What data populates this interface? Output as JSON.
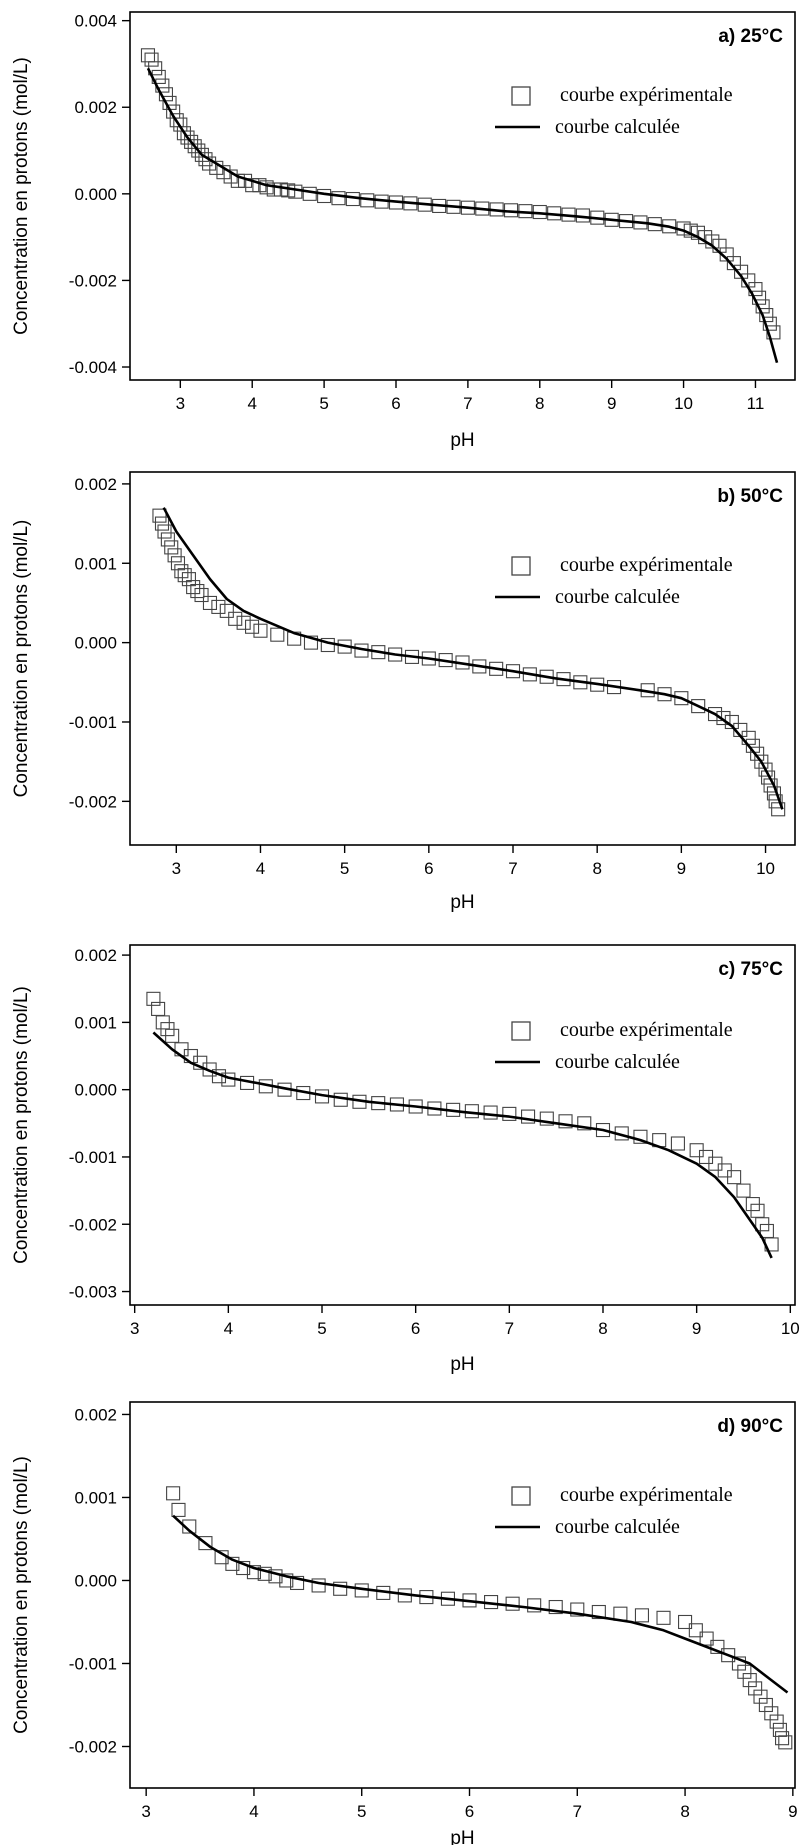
{
  "chart_data": [
    {
      "type": "scatter",
      "title": "a) 25°C",
      "xlabel": "pH",
      "ylabel": "Concentration en protons (mol/L)",
      "xlim": [
        2.3,
        11.55
      ],
      "ylim": [
        -0.0043,
        0.0042
      ],
      "xticks": [
        3,
        4,
        5,
        6,
        7,
        8,
        9,
        10,
        11
      ],
      "yticks": [
        0.004,
        0.002,
        0.0,
        -0.002,
        -0.004
      ],
      "ytick_labels": [
        "0.004",
        "0.002",
        "0.000",
        "-0.002",
        "-0.004"
      ],
      "legend": {
        "experimental": "courbe expérimentale",
        "calculated": "courbe calculée",
        "placement": "top-right"
      },
      "series": [
        {
          "name": "courbe expérimentale",
          "kind": "markers",
          "x": [
            2.55,
            2.6,
            2.65,
            2.7,
            2.75,
            2.8,
            2.85,
            2.9,
            2.95,
            3.0,
            3.05,
            3.1,
            3.15,
            3.2,
            3.25,
            3.3,
            3.35,
            3.4,
            3.5,
            3.6,
            3.7,
            3.8,
            3.9,
            4.0,
            4.1,
            4.2,
            4.3,
            4.4,
            4.5,
            4.6,
            4.8,
            5.0,
            5.2,
            5.4,
            5.6,
            5.8,
            6.0,
            6.2,
            6.4,
            6.6,
            6.8,
            7.0,
            7.2,
            7.4,
            7.6,
            7.8,
            8.0,
            8.2,
            8.4,
            8.6,
            8.8,
            9.0,
            9.2,
            9.4,
            9.6,
            9.8,
            10.0,
            10.1,
            10.2,
            10.3,
            10.4,
            10.5,
            10.6,
            10.7,
            10.8,
            10.9,
            11.0,
            11.05,
            11.1,
            11.15,
            11.2,
            11.25
          ],
          "y": [
            0.0032,
            0.0031,
            0.0029,
            0.0027,
            0.0025,
            0.0023,
            0.0021,
            0.0019,
            0.0017,
            0.0016,
            0.0014,
            0.0013,
            0.0012,
            0.0011,
            0.001,
            0.0009,
            0.0008,
            0.0007,
            0.0006,
            0.0005,
            0.0004,
            0.0003,
            0.0003,
            0.0002,
            0.0002,
            0.00015,
            0.0001,
            0.0001,
            8e-05,
            5e-05,
            0.0,
            -5e-05,
            -0.0001,
            -0.00012,
            -0.00015,
            -0.00018,
            -0.0002,
            -0.00022,
            -0.00025,
            -0.00028,
            -0.0003,
            -0.00032,
            -0.00034,
            -0.00036,
            -0.00038,
            -0.0004,
            -0.00042,
            -0.00045,
            -0.00048,
            -0.0005,
            -0.00055,
            -0.0006,
            -0.00063,
            -0.00066,
            -0.0007,
            -0.00075,
            -0.0008,
            -0.00085,
            -0.0009,
            -0.001,
            -0.0011,
            -0.0012,
            -0.0014,
            -0.0016,
            -0.0018,
            -0.002,
            -0.0022,
            -0.0024,
            -0.0026,
            -0.0028,
            -0.003,
            -0.0032
          ]
        },
        {
          "name": "courbe calculée",
          "kind": "line",
          "x": [
            2.55,
            2.7,
            2.9,
            3.1,
            3.3,
            3.5,
            3.8,
            4.2,
            4.6,
            5.0,
            5.5,
            6.0,
            6.5,
            7.0,
            7.5,
            8.0,
            8.5,
            9.0,
            9.5,
            9.8,
            10.0,
            10.2,
            10.4,
            10.6,
            10.8,
            10.95,
            11.1,
            11.2,
            11.3
          ],
          "y": [
            0.0029,
            0.0024,
            0.0018,
            0.0013,
            0.0009,
            0.0007,
            0.0004,
            0.0002,
            0.0001,
            0.0,
            -0.0001,
            -0.00018,
            -0.00025,
            -0.00032,
            -0.0004,
            -0.00045,
            -0.00052,
            -0.0006,
            -0.00068,
            -0.00076,
            -0.00085,
            -0.001,
            -0.0012,
            -0.0015,
            -0.0019,
            -0.0023,
            -0.0028,
            -0.0033,
            -0.0039
          ]
        }
      ]
    },
    {
      "type": "scatter",
      "title": "b) 50°C",
      "xlabel": "pH",
      "ylabel": "Concentration en protons (mol/L)",
      "xlim": [
        2.45,
        10.35
      ],
      "ylim": [
        -0.00255,
        0.00215
      ],
      "xticks": [
        3,
        4,
        5,
        6,
        7,
        8,
        9,
        10
      ],
      "yticks": [
        0.002,
        0.001,
        0.0,
        -0.001,
        -0.002
      ],
      "ytick_labels": [
        "0.002",
        "0.001",
        "0.000",
        "-0.001",
        "-0.002"
      ],
      "legend": {
        "experimental": "courbe expérimentale",
        "calculated": "courbe calculée",
        "placement": "top-right"
      },
      "series": [
        {
          "name": "courbe expérimentale",
          "kind": "markers",
          "x": [
            2.8,
            2.83,
            2.86,
            2.9,
            2.94,
            2.98,
            3.02,
            3.06,
            3.1,
            3.15,
            3.2,
            3.25,
            3.3,
            3.4,
            3.5,
            3.6,
            3.7,
            3.8,
            3.9,
            4.0,
            4.2,
            4.4,
            4.6,
            4.8,
            5.0,
            5.2,
            5.4,
            5.6,
            5.8,
            6.0,
            6.2,
            6.4,
            6.6,
            6.8,
            7.0,
            7.2,
            7.4,
            7.6,
            7.8,
            8.0,
            8.2,
            8.6,
            8.8,
            9.0,
            9.2,
            9.4,
            9.5,
            9.6,
            9.7,
            9.8,
            9.85,
            9.9,
            9.95,
            10.0,
            10.03,
            10.06,
            10.1,
            10.12,
            10.15
          ],
          "y": [
            0.0016,
            0.0015,
            0.0014,
            0.0013,
            0.0012,
            0.0011,
            0.001,
            0.0009,
            0.00085,
            0.0008,
            0.0007,
            0.00065,
            0.0006,
            0.0005,
            0.00045,
            0.0004,
            0.0003,
            0.00025,
            0.0002,
            0.00015,
            0.0001,
            5e-05,
            0.0,
            -3e-05,
            -5e-05,
            -0.0001,
            -0.00012,
            -0.00015,
            -0.00018,
            -0.0002,
            -0.00022,
            -0.00025,
            -0.0003,
            -0.00033,
            -0.00036,
            -0.0004,
            -0.00043,
            -0.00046,
            -0.0005,
            -0.00053,
            -0.00056,
            -0.0006,
            -0.00065,
            -0.0007,
            -0.0008,
            -0.0009,
            -0.00095,
            -0.001,
            -0.0011,
            -0.0012,
            -0.0013,
            -0.0014,
            -0.0015,
            -0.0016,
            -0.0017,
            -0.0018,
            -0.0019,
            -0.002,
            -0.0021
          ]
        },
        {
          "name": "courbe calculée",
          "kind": "line",
          "x": [
            2.85,
            3.0,
            3.2,
            3.4,
            3.6,
            3.8,
            4.0,
            4.4,
            4.8,
            5.2,
            5.6,
            6.0,
            6.5,
            7.0,
            7.5,
            8.0,
            8.5,
            8.8,
            9.0,
            9.2,
            9.4,
            9.6,
            9.8,
            9.95,
            10.1,
            10.2
          ],
          "y": [
            0.0017,
            0.0014,
            0.0011,
            0.0008,
            0.00055,
            0.0004,
            0.0003,
            0.00012,
            0.0,
            -8e-05,
            -0.00015,
            -0.0002,
            -0.00028,
            -0.00036,
            -0.00045,
            -0.00052,
            -0.0006,
            -0.00065,
            -0.0007,
            -0.0008,
            -0.0009,
            -0.00105,
            -0.0013,
            -0.0015,
            -0.0018,
            -0.0021
          ]
        }
      ]
    },
    {
      "type": "scatter",
      "title": "c) 75°C",
      "xlabel": "pH",
      "ylabel": "Concentration en protons (mol/L)",
      "xlim": [
        2.95,
        10.05
      ],
      "ylim": [
        -0.0032,
        0.00215
      ],
      "xticks": [
        3,
        4,
        5,
        6,
        7,
        8,
        9,
        10
      ],
      "yticks": [
        0.002,
        0.001,
        0.0,
        -0.001,
        -0.002,
        -0.003
      ],
      "ytick_labels": [
        "0.002",
        "0.001",
        "0.000",
        "-0.001",
        "-0.002",
        "-0.003"
      ],
      "legend": {
        "experimental": "courbe expérimentale",
        "calculated": "courbe calculée",
        "placement": "top-right"
      },
      "series": [
        {
          "name": "courbe expérimentale",
          "kind": "markers",
          "x": [
            3.2,
            3.25,
            3.3,
            3.35,
            3.4,
            3.5,
            3.6,
            3.7,
            3.8,
            3.9,
            4.0,
            4.2,
            4.4,
            4.6,
            4.8,
            5.0,
            5.2,
            5.4,
            5.6,
            5.8,
            6.0,
            6.2,
            6.4,
            6.6,
            6.8,
            7.0,
            7.2,
            7.4,
            7.6,
            7.8,
            8.0,
            8.2,
            8.4,
            8.6,
            8.8,
            9.0,
            9.1,
            9.2,
            9.3,
            9.4,
            9.5,
            9.6,
            9.65,
            9.7,
            9.75,
            9.8
          ],
          "y": [
            0.00135,
            0.0012,
            0.001,
            0.0009,
            0.0008,
            0.0006,
            0.0005,
            0.0004,
            0.0003,
            0.0002,
            0.00015,
            0.0001,
            5e-05,
            0.0,
            -5e-05,
            -0.0001,
            -0.00015,
            -0.00018,
            -0.0002,
            -0.00022,
            -0.00025,
            -0.00028,
            -0.0003,
            -0.00032,
            -0.00034,
            -0.00036,
            -0.0004,
            -0.00043,
            -0.00047,
            -0.0005,
            -0.0006,
            -0.00065,
            -0.0007,
            -0.00075,
            -0.0008,
            -0.0009,
            -0.001,
            -0.0011,
            -0.0012,
            -0.0013,
            -0.0015,
            -0.0017,
            -0.0018,
            -0.002,
            -0.0021,
            -0.0023
          ]
        },
        {
          "name": "courbe calculée",
          "kind": "line",
          "x": [
            3.2,
            3.4,
            3.6,
            3.8,
            4.0,
            4.3,
            4.6,
            5.0,
            5.5,
            6.0,
            6.5,
            7.0,
            7.5,
            8.0,
            8.4,
            8.7,
            9.0,
            9.2,
            9.4,
            9.5,
            9.6,
            9.7,
            9.8
          ],
          "y": [
            0.00085,
            0.0006,
            0.0004,
            0.00028,
            0.00018,
            0.0001,
            2e-05,
            -8e-05,
            -0.00018,
            -0.00025,
            -0.00033,
            -0.0004,
            -0.0005,
            -0.0006,
            -0.00075,
            -0.0009,
            -0.0011,
            -0.0013,
            -0.0016,
            -0.0018,
            -0.002,
            -0.0022,
            -0.0025
          ]
        }
      ]
    },
    {
      "type": "scatter",
      "title": "d) 90°C",
      "xlabel": "pH",
      "ylabel": "Concentration en protons (mol/L)",
      "xlim": [
        2.85,
        9.02
      ],
      "ylim": [
        -0.0025,
        0.00215
      ],
      "xticks": [
        3,
        4,
        5,
        6,
        7,
        8,
        9
      ],
      "yticks": [
        0.002,
        0.001,
        0.0,
        -0.001,
        -0.002
      ],
      "ytick_labels": [
        "0.002",
        "0.001",
        "0.000",
        "-0.001",
        "-0.002"
      ],
      "legend": {
        "experimental": "courbe expérimentale",
        "calculated": "courbe calculée",
        "placement": "top-right"
      },
      "series": [
        {
          "name": "courbe expérimentale",
          "kind": "markers",
          "x": [
            3.25,
            3.3,
            3.4,
            3.55,
            3.7,
            3.8,
            3.9,
            4.0,
            4.1,
            4.2,
            4.3,
            4.4,
            4.6,
            4.8,
            5.0,
            5.2,
            5.4,
            5.6,
            5.8,
            6.0,
            6.2,
            6.4,
            6.6,
            6.8,
            7.0,
            7.2,
            7.4,
            7.6,
            7.8,
            8.0,
            8.1,
            8.2,
            8.3,
            8.4,
            8.5,
            8.55,
            8.6,
            8.65,
            8.7,
            8.75,
            8.8,
            8.85,
            8.88,
            8.9,
            8.93
          ],
          "y": [
            0.00105,
            0.00085,
            0.00065,
            0.00045,
            0.00028,
            0.0002,
            0.00015,
            0.0001,
            8e-05,
            5e-05,
            0.0,
            -3e-05,
            -6e-05,
            -0.0001,
            -0.00012,
            -0.00015,
            -0.00018,
            -0.0002,
            -0.00022,
            -0.00024,
            -0.00026,
            -0.00028,
            -0.0003,
            -0.00032,
            -0.00035,
            -0.00038,
            -0.0004,
            -0.00042,
            -0.00045,
            -0.0005,
            -0.0006,
            -0.0007,
            -0.0008,
            -0.0009,
            -0.001,
            -0.0011,
            -0.0012,
            -0.0013,
            -0.0014,
            -0.0015,
            -0.0016,
            -0.0017,
            -0.0018,
            -0.0019,
            -0.00195
          ]
        },
        {
          "name": "courbe calculée",
          "kind": "line",
          "x": [
            3.25,
            3.4,
            3.6,
            3.8,
            4.0,
            4.3,
            4.6,
            5.0,
            5.5,
            6.0,
            6.5,
            7.0,
            7.5,
            7.8,
            8.0,
            8.2,
            8.4,
            8.6,
            8.8,
            8.95
          ],
          "y": [
            0.00078,
            0.0006,
            0.0004,
            0.00025,
            0.00015,
            5e-05,
            -3e-05,
            -0.0001,
            -0.00018,
            -0.00025,
            -0.00032,
            -0.0004,
            -0.0005,
            -0.0006,
            -0.0007,
            -0.0008,
            -0.0009,
            -0.001,
            -0.0012,
            -0.00135
          ]
        }
      ]
    }
  ]
}
